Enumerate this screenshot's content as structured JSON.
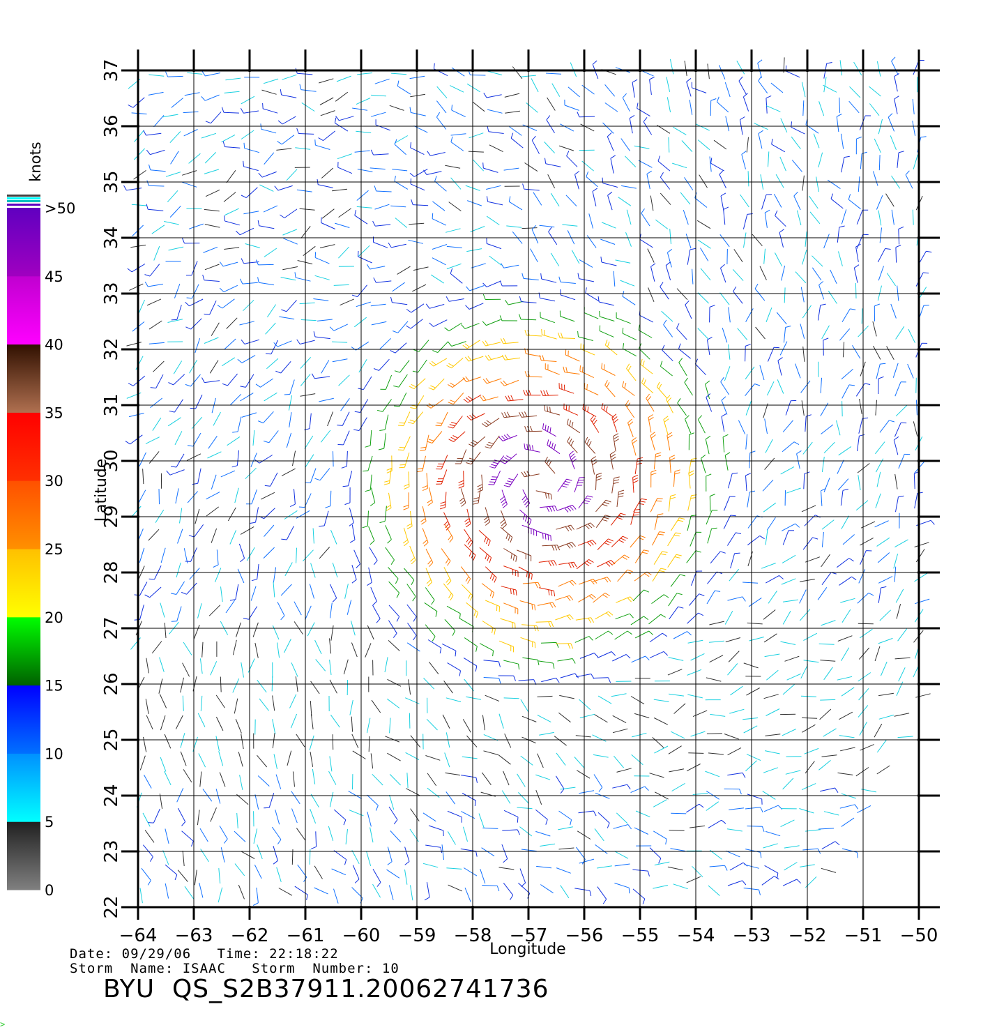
{
  "map": {
    "lon_range": [
      -64,
      -50
    ],
    "lat_range": [
      22,
      37
    ],
    "lon_ticks": [
      "−64",
      "−63",
      "−62",
      "−61",
      "−60",
      "−59",
      "−58",
      "−57",
      "−56",
      "−55",
      "−54",
      "−53",
      "−52",
      "−51",
      "−50"
    ],
    "lat_ticks": [
      "22",
      "23",
      "24",
      "25",
      "26",
      "27",
      "28",
      "29",
      "30",
      "31",
      "32",
      "33",
      "34",
      "35",
      "36",
      "37"
    ],
    "xlabel": "Longitude",
    "ylabel": "Latitude",
    "grid": true,
    "storm_center": {
      "lon": -56.8,
      "lat": 29.6
    },
    "features": "wind barbs colored by speed; cyclonic circulation centered near the storm center"
  },
  "colorbar": {
    "title": "knots",
    "labels": [
      "0",
      "5",
      "10",
      "15",
      "20",
      "25",
      "30",
      "35",
      "40",
      "45",
      ">50"
    ],
    "bands": [
      {
        "from": 0,
        "to": 5,
        "colors": [
          "#808080",
          "#202020"
        ]
      },
      {
        "from": 5,
        "to": 10,
        "colors": [
          "#00ffff",
          "#0090ff"
        ]
      },
      {
        "from": 10,
        "to": 15,
        "colors": [
          "#0070ff",
          "#0000ff"
        ]
      },
      {
        "from": 15,
        "to": 20,
        "colors": [
          "#006000",
          "#00ff00"
        ]
      },
      {
        "from": 20,
        "to": 25,
        "colors": [
          "#ffff00",
          "#ffc000"
        ]
      },
      {
        "from": 25,
        "to": 30,
        "colors": [
          "#ff9000",
          "#ff5000"
        ]
      },
      {
        "from": 30,
        "to": 35,
        "colors": [
          "#ff3000",
          "#ff0000"
        ]
      },
      {
        "from": 35,
        "to": 40,
        "colors": [
          "#b07050",
          "#301000"
        ]
      },
      {
        "from": 40,
        "to": 45,
        "colors": [
          "#ff00ff",
          "#c000d0"
        ]
      },
      {
        "from": 45,
        "to": 50,
        "colors": [
          "#a000c0",
          "#6000c0"
        ]
      }
    ]
  },
  "footer": {
    "date_label": "Date:",
    "date": "09/29/06",
    "time_label": "Time:",
    "time": "22:18:22",
    "storm_name_label": "Storm  Name:",
    "storm_name": "ISAAC",
    "storm_number_label": "Storm  Number:",
    "storm_number": "10",
    "product_id": "BYU  QS_S2B37911.20062741736",
    "corner_mark": ">"
  }
}
